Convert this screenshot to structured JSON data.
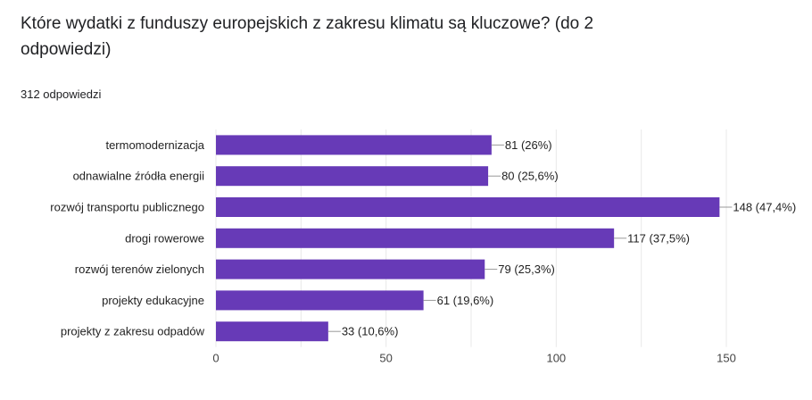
{
  "question": {
    "title": "Które wydatki z funduszy europejskich z zakresu klimatu są kluczowe? (do 2 odpowiedzi)",
    "responses": "312 odpowiedzi"
  },
  "colors": {
    "bar": "#673ab7",
    "grid": "#e8e8e8",
    "leader": "#999999"
  },
  "chart_data": {
    "type": "bar",
    "orientation": "horizontal",
    "categories": [
      "termomodernizacja",
      "odnawialne źródła energii",
      "rozwój transportu publicznego",
      "drogi rowerowe",
      "rozwój terenów zielonych",
      "projekty edukacyjne",
      "projekty z zakresu odpadów"
    ],
    "values": [
      81,
      80,
      148,
      117,
      79,
      61,
      33
    ],
    "value_labels": [
      "81 (26%)",
      "80 (25,6%)",
      "148 (47,4%)",
      "117 (37,5%)",
      "79 (25,3%)",
      "61 (19,6%)",
      "33 (10,6%)"
    ],
    "xlim": [
      0,
      150
    ],
    "xticks": [
      0,
      50,
      100,
      150
    ],
    "xtick_labels": [
      "0",
      "50",
      "100",
      "150"
    ],
    "grid": true
  }
}
